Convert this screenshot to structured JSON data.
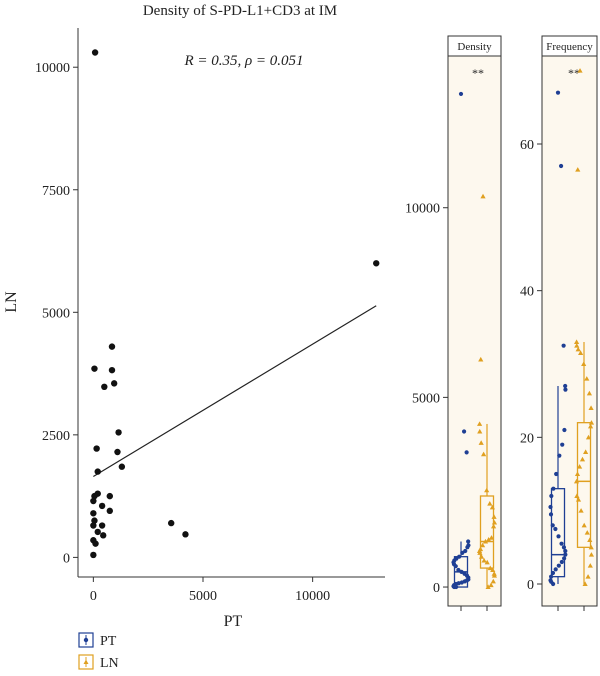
{
  "chart_data": [
    {
      "type": "scatter",
      "title": "Density of S-PD-L1+CD3 at IM",
      "xlabel": "PT",
      "ylabel": "LN",
      "xlim": [
        -700,
        13300
      ],
      "ylim": [
        -400,
        10800
      ],
      "xticks": [
        0,
        5000,
        10000
      ],
      "yticks": [
        0,
        2500,
        5000,
        7500,
        10000
      ],
      "annotation": "R = 0.35, ρ = 0.051",
      "regression": {
        "intercept": 1650,
        "slope": 0.27,
        "x_range": [
          0,
          12900
        ]
      },
      "points": [
        {
          "x": 80,
          "y": 10300
        },
        {
          "x": 12900,
          "y": 6000
        },
        {
          "x": 850,
          "y": 4300
        },
        {
          "x": 50,
          "y": 3850
        },
        {
          "x": 850,
          "y": 3820
        },
        {
          "x": 950,
          "y": 3550
        },
        {
          "x": 500,
          "y": 3480
        },
        {
          "x": 1150,
          "y": 2550
        },
        {
          "x": 150,
          "y": 2220
        },
        {
          "x": 1100,
          "y": 2150
        },
        {
          "x": 1300,
          "y": 1850
        },
        {
          "x": 200,
          "y": 1750
        },
        {
          "x": 200,
          "y": 1300
        },
        {
          "x": 50,
          "y": 1250
        },
        {
          "x": 750,
          "y": 1250
        },
        {
          "x": 0,
          "y": 1150
        },
        {
          "x": 400,
          "y": 1050
        },
        {
          "x": 750,
          "y": 950
        },
        {
          "x": 0,
          "y": 900
        },
        {
          "x": 50,
          "y": 750
        },
        {
          "x": 400,
          "y": 650
        },
        {
          "x": 0,
          "y": 650
        },
        {
          "x": 3550,
          "y": 700
        },
        {
          "x": 200,
          "y": 520
        },
        {
          "x": 450,
          "y": 450
        },
        {
          "x": 4200,
          "y": 470
        },
        {
          "x": 0,
          "y": 350
        },
        {
          "x": 100,
          "y": 280
        },
        {
          "x": 0,
          "y": 50
        }
      ]
    },
    {
      "type": "box",
      "title": "Density",
      "categories": [
        "PT",
        "LN"
      ],
      "ylim": [
        -500,
        14000
      ],
      "yticks": [
        0,
        5000,
        10000
      ],
      "significance": "**",
      "series": [
        {
          "name": "PT",
          "color": "#1f3f94",
          "marker": "circle",
          "box": {
            "min": 0,
            "q1": 0,
            "median": 400,
            "q3": 800,
            "max": 1200
          },
          "points": [
            13000,
            4100,
            3550,
            1200,
            1100,
            1050,
            950,
            900,
            800,
            750,
            700,
            650,
            600,
            550,
            450,
            400,
            350,
            300,
            250,
            200,
            180,
            150,
            120,
            100,
            80,
            50,
            20,
            0,
            0
          ]
        },
        {
          "name": "LN",
          "color": "#e0a020",
          "marker": "triangle",
          "box": {
            "min": 0,
            "q1": 500,
            "median": 1200,
            "q3": 2400,
            "max": 4300
          },
          "points": [
            10300,
            6000,
            4300,
            4100,
            3800,
            3500,
            2550,
            2200,
            2100,
            1850,
            1700,
            1600,
            1300,
            1250,
            1200,
            1100,
            1000,
            950,
            900,
            800,
            700,
            650,
            500,
            450,
            350,
            300,
            150,
            50,
            0
          ]
        }
      ]
    },
    {
      "type": "box",
      "title": "Frequency",
      "categories": [
        "PT",
        "LN"
      ],
      "ylim": [
        -3,
        72
      ],
      "yticks": [
        0,
        20,
        40,
        60
      ],
      "significance": "**",
      "series": [
        {
          "name": "PT",
          "color": "#1f3f94",
          "marker": "circle",
          "box": {
            "min": 0,
            "q1": 1,
            "median": 4,
            "q3": 13,
            "max": 27
          },
          "points": [
            67,
            57,
            32.5,
            27,
            26.5,
            21,
            19,
            17.5,
            15,
            13,
            12,
            10.5,
            9.5,
            8,
            7.5,
            6.5,
            5.5,
            5,
            4.5,
            4,
            3.5,
            3,
            2.5,
            2,
            1.5,
            1,
            0.5,
            0.3,
            0
          ]
        },
        {
          "name": "LN",
          "color": "#e0a020",
          "marker": "triangle",
          "box": {
            "min": 0,
            "q1": 5,
            "median": 14,
            "q3": 22,
            "max": 33
          },
          "points": [
            70,
            56.5,
            33,
            32.5,
            32,
            31.5,
            30,
            28,
            26,
            24,
            22,
            21.5,
            20,
            18,
            17,
            16,
            15,
            14,
            12,
            11.5,
            10,
            8,
            7,
            6,
            5,
            4,
            2.5,
            1,
            0
          ]
        }
      ]
    }
  ],
  "legend": [
    {
      "label": "PT",
      "color": "#1f3f94"
    },
    {
      "label": "LN",
      "color": "#e0a020"
    }
  ]
}
